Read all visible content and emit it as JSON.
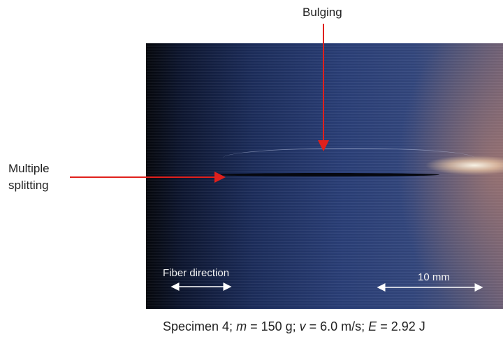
{
  "annotations": {
    "bulging": "Bulging",
    "multiple_splitting": [
      "Multiple",
      "splitting"
    ]
  },
  "scale_bars": {
    "fiber_direction": "Fiber direction",
    "length": "10 mm"
  },
  "caption": [
    "Specimen 4;",
    "m",
    "= 150 g;",
    "v",
    "= 6.0 m/s;",
    "E",
    "= 2.92 J"
  ]
}
